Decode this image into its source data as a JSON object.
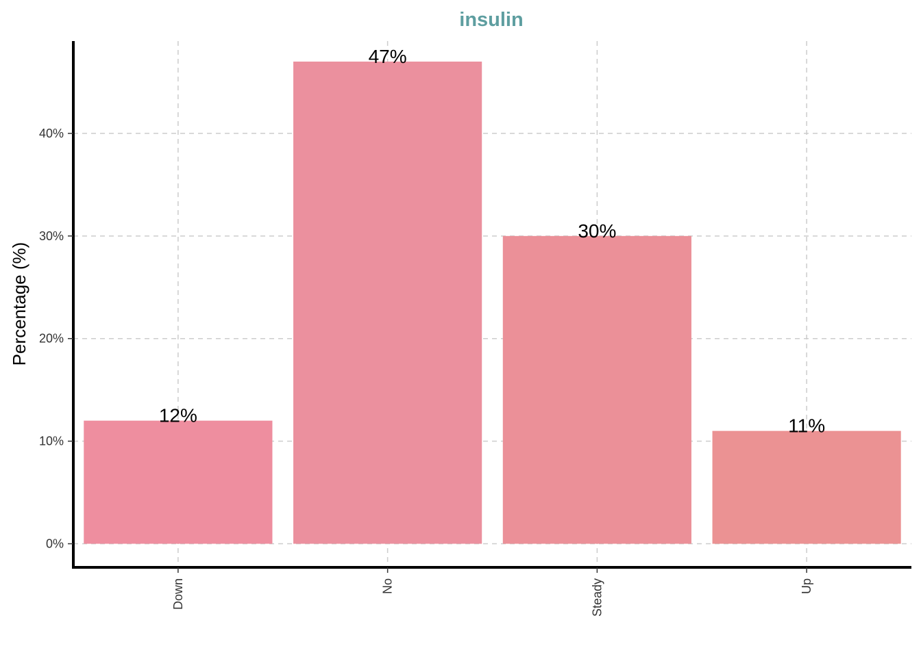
{
  "chart_data": {
    "type": "bar",
    "title": "insulin",
    "title_color": "#5e9ea0",
    "xlabel": "",
    "ylabel": "Percentage (%)",
    "categories": [
      "Down",
      "No",
      "Steady",
      "Up"
    ],
    "values": [
      12,
      47,
      30,
      11
    ],
    "data_labels": [
      "12%",
      "47%",
      "30%",
      "11%"
    ],
    "bar_colors": [
      "#ee8e9f",
      "#eb909e",
      "#eb9098",
      "#eb9293"
    ],
    "y_ticks": [
      0,
      10,
      20,
      30,
      40
    ],
    "y_tick_labels": [
      "0%",
      "10%",
      "20%",
      "30%",
      "40%"
    ],
    "ylim": [
      -2.3,
      49
    ],
    "grid": true,
    "grid_style": "dashed",
    "legend": "none"
  }
}
